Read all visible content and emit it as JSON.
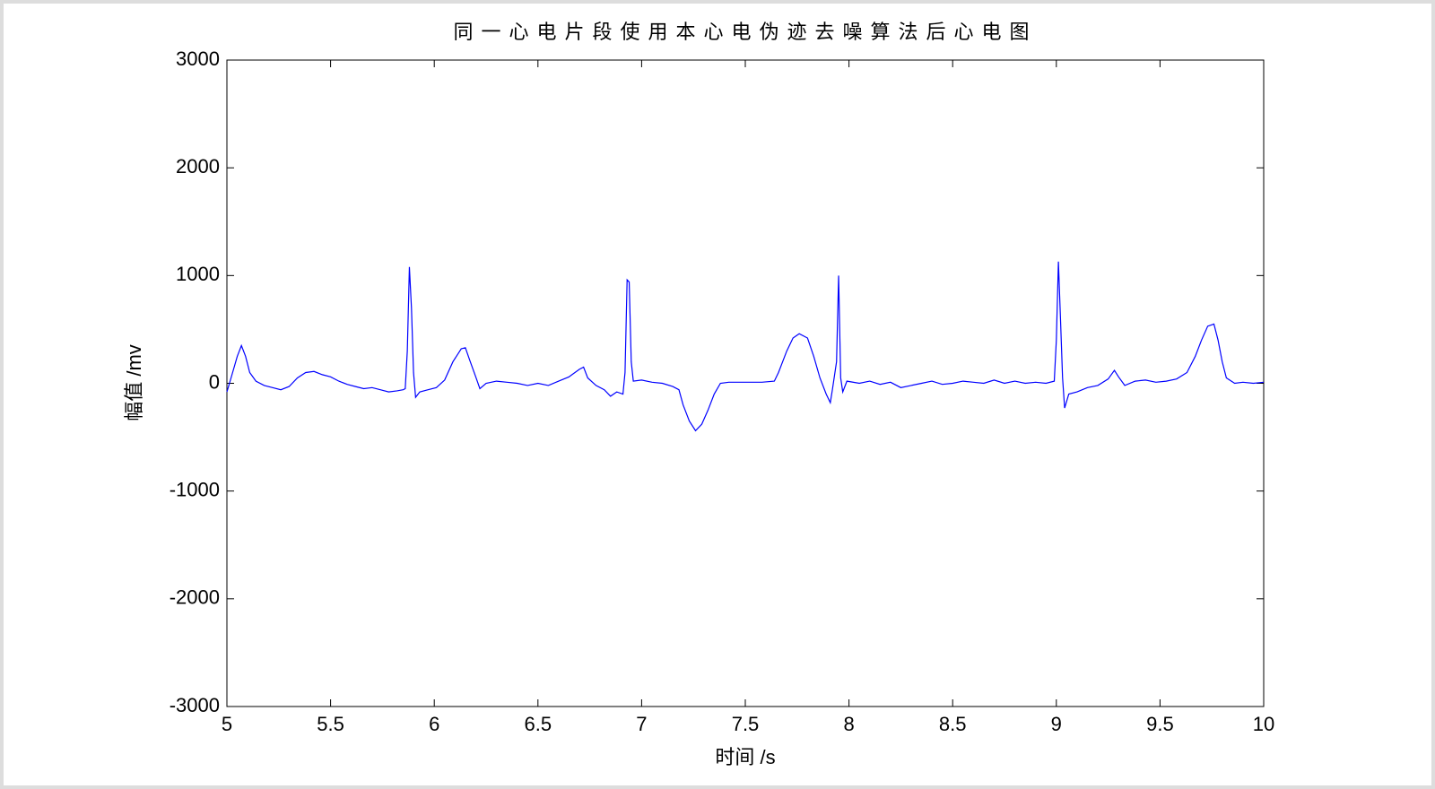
{
  "chart_data": {
    "type": "line",
    "title": "同一心电片段使用本心电伪迹去噪算法后心电图",
    "xlabel": "时间 /s",
    "ylabel": "幅值 /mv",
    "xlim": [
      5,
      10
    ],
    "ylim": [
      -3000,
      3000
    ],
    "xticks": [
      5,
      5.5,
      6,
      6.5,
      7,
      7.5,
      8,
      8.5,
      9,
      9.5,
      10
    ],
    "yticks": [
      -3000,
      -2000,
      -1000,
      0,
      1000,
      2000,
      3000
    ],
    "grid": false,
    "x": [
      5.0,
      5.02,
      5.05,
      5.07,
      5.09,
      5.11,
      5.14,
      5.18,
      5.22,
      5.26,
      5.3,
      5.34,
      5.38,
      5.42,
      5.46,
      5.5,
      5.54,
      5.58,
      5.62,
      5.66,
      5.7,
      5.74,
      5.78,
      5.82,
      5.85,
      5.86,
      5.87,
      5.88,
      5.89,
      5.9,
      5.91,
      5.93,
      5.97,
      6.01,
      6.05,
      6.09,
      6.13,
      6.15,
      6.17,
      6.2,
      6.22,
      6.25,
      6.3,
      6.35,
      6.4,
      6.45,
      6.5,
      6.55,
      6.6,
      6.65,
      6.7,
      6.72,
      6.74,
      6.78,
      6.82,
      6.85,
      6.88,
      6.91,
      6.92,
      6.93,
      6.94,
      6.95,
      6.96,
      7.0,
      7.05,
      7.1,
      7.15,
      7.18,
      7.2,
      7.23,
      7.26,
      7.29,
      7.32,
      7.35,
      7.38,
      7.42,
      7.5,
      7.58,
      7.64,
      7.66,
      7.7,
      7.73,
      7.76,
      7.8,
      7.83,
      7.86,
      7.89,
      7.91,
      7.92,
      7.94,
      7.95,
      7.96,
      7.97,
      7.99,
      8.05,
      8.1,
      8.15,
      8.2,
      8.25,
      8.3,
      8.35,
      8.4,
      8.45,
      8.5,
      8.55,
      8.6,
      8.65,
      8.7,
      8.75,
      8.8,
      8.85,
      8.9,
      8.95,
      8.99,
      9.0,
      9.01,
      9.02,
      9.03,
      9.04,
      9.06,
      9.1,
      9.15,
      9.2,
      9.25,
      9.28,
      9.3,
      9.33,
      9.38,
      9.43,
      9.48,
      9.53,
      9.58,
      9.63,
      9.67,
      9.7,
      9.73,
      9.76,
      9.78,
      9.8,
      9.82,
      9.86,
      9.9,
      9.95,
      10.0
    ],
    "series": [
      {
        "color": "#0000ff",
        "values": [
          -80,
          50,
          250,
          350,
          250,
          100,
          20,
          -20,
          -40,
          -60,
          -30,
          50,
          100,
          110,
          80,
          60,
          20,
          -10,
          -30,
          -50,
          -40,
          -60,
          -80,
          -70,
          -60,
          -50,
          300,
          1080,
          700,
          100,
          -130,
          -80,
          -60,
          -40,
          30,
          200,
          320,
          330,
          220,
          60,
          -50,
          0,
          20,
          10,
          0,
          -20,
          0,
          -20,
          20,
          60,
          130,
          150,
          50,
          -20,
          -60,
          -120,
          -80,
          -100,
          100,
          960,
          940,
          200,
          20,
          30,
          10,
          0,
          -30,
          -60,
          -200,
          -350,
          -440,
          -380,
          -250,
          -100,
          0,
          10,
          10,
          10,
          20,
          100,
          300,
          420,
          460,
          420,
          250,
          50,
          -100,
          -180,
          -60,
          200,
          1000,
          50,
          -80,
          20,
          0,
          20,
          -10,
          10,
          -40,
          -20,
          0,
          20,
          -10,
          0,
          20,
          10,
          0,
          30,
          0,
          20,
          0,
          10,
          0,
          20,
          400,
          1130,
          600,
          50,
          -230,
          -100,
          -80,
          -40,
          -20,
          40,
          120,
          60,
          -20,
          20,
          30,
          10,
          20,
          40,
          100,
          250,
          400,
          530,
          550,
          400,
          200,
          50,
          0,
          10,
          0,
          10
        ]
      }
    ]
  }
}
